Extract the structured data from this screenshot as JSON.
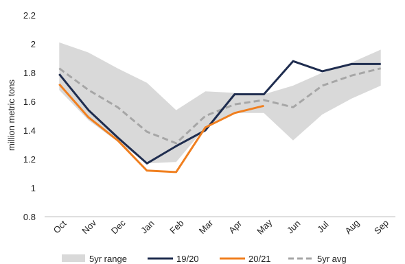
{
  "chart_data": {
    "type": "line",
    "title": "",
    "xlabel": "",
    "ylabel": "million metric tons",
    "ylim": [
      0.8,
      2.2
    ],
    "yticks": [
      0.8,
      1,
      1.2,
      1.4,
      1.6,
      1.8,
      2,
      2.2
    ],
    "ytick_labels": [
      "0.8",
      "1",
      "1.2",
      "1.4",
      "1.6",
      "1.8",
      "2",
      "2.2"
    ],
    "categories": [
      "Oct",
      "Nov",
      "Dec",
      "Jan",
      "Feb",
      "Mar",
      "Apr",
      "May",
      "Jun",
      "Jul",
      "Aug",
      "Sep"
    ],
    "grid": false,
    "legend_position": "bottom",
    "range": {
      "name": "5yr range",
      "color": "#d9d9d9",
      "upper": [
        2.01,
        1.94,
        1.83,
        1.73,
        1.54,
        1.67,
        1.66,
        1.65,
        1.71,
        1.8,
        1.87,
        1.96
      ],
      "lower": [
        1.68,
        1.47,
        1.32,
        1.17,
        1.18,
        1.42,
        1.52,
        1.52,
        1.33,
        1.51,
        1.62,
        1.71
      ]
    },
    "series": [
      {
        "name": "19/20",
        "color": "#1f2d4f",
        "style": "solid",
        "values": [
          1.79,
          1.54,
          1.35,
          1.17,
          1.29,
          1.4,
          1.65,
          1.65,
          1.88,
          1.81,
          1.86,
          1.86
        ]
      },
      {
        "name": "20/21",
        "color": "#f07f1f",
        "style": "solid",
        "values": [
          1.72,
          1.49,
          1.33,
          1.12,
          1.11,
          1.42,
          1.52,
          1.57,
          null,
          null,
          null,
          null
        ]
      },
      {
        "name": "5yr avg",
        "color": "#a6a6a6",
        "style": "dashed",
        "values": [
          1.83,
          1.68,
          1.56,
          1.39,
          1.31,
          1.5,
          1.58,
          1.61,
          1.56,
          1.71,
          1.78,
          1.83
        ]
      }
    ]
  }
}
